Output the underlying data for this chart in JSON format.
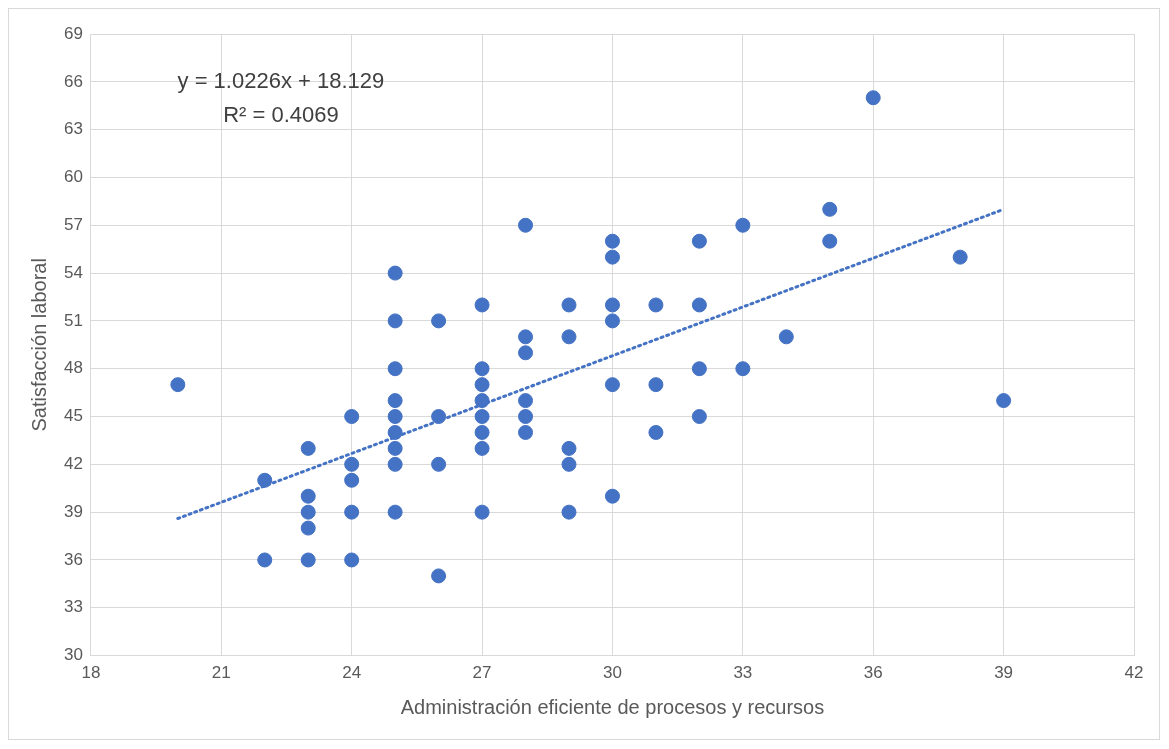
{
  "chart_data": {
    "type": "scatter",
    "xlabel": "Administración eficiente de procesos y recursos",
    "ylabel": "Satisfacción laboral",
    "xlim": [
      18,
      42
    ],
    "xticks": [
      18,
      21,
      24,
      27,
      30,
      33,
      36,
      39,
      42
    ],
    "ylim": [
      30,
      69
    ],
    "yticks": [
      30,
      33,
      36,
      39,
      42,
      45,
      48,
      51,
      54,
      57,
      60,
      63,
      66,
      69
    ],
    "grid": true,
    "legend": false,
    "marker": "circle",
    "annotations": [
      "y = 1.0226x + 18.129",
      "R² = 0.4069"
    ],
    "series": [
      {
        "color": "#4472c4",
        "x": [
          20,
          22,
          22,
          23,
          23,
          23,
          23,
          23,
          24,
          24,
          24,
          24,
          24,
          25,
          25,
          25,
          25,
          25,
          25,
          25,
          25,
          25,
          26,
          26,
          26,
          26,
          27,
          27,
          27,
          27,
          27,
          27,
          27,
          27,
          28,
          28,
          28,
          28,
          28,
          28,
          29,
          29,
          29,
          29,
          29,
          30,
          30,
          30,
          30,
          30,
          30,
          31,
          31,
          31,
          32,
          32,
          32,
          32,
          33,
          33,
          34,
          35,
          35,
          36,
          38,
          39
        ],
        "values": [
          47,
          41,
          36,
          43,
          40,
          39,
          38,
          36,
          45,
          42,
          41,
          39,
          36,
          54,
          51,
          48,
          46,
          45,
          44,
          43,
          42,
          39,
          51,
          45,
          42,
          35,
          52,
          48,
          47,
          46,
          45,
          44,
          43,
          39,
          57,
          50,
          49,
          46,
          45,
          44,
          52,
          50,
          43,
          42,
          39,
          56,
          55,
          52,
          51,
          47,
          40,
          52,
          47,
          44,
          56,
          52,
          48,
          45,
          57,
          48,
          50,
          58,
          56,
          65,
          55,
          46
        ]
      },
      {
        "type": "line",
        "color": "#4472c4",
        "line_style": "dotted",
        "marker": "none",
        "x": [
          20,
          39
        ],
        "values": [
          38.6,
          58.0
        ]
      }
    ]
  }
}
